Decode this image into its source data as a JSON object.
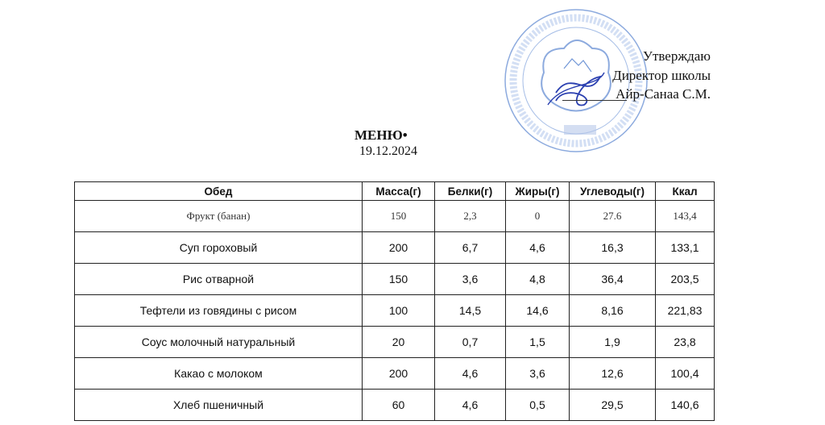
{
  "approval": {
    "line1": "Утверждаю",
    "line2": "Директор школы",
    "line3": "Айр-Санаа С.М.",
    "stamp_color": "#3a6fc4"
  },
  "document": {
    "title": "МЕНЮ•",
    "date": "19.12.2024"
  },
  "table": {
    "headers": [
      "Обед",
      "Масса(г)",
      "Белки(г)",
      "Жиры(г)",
      "Углеводы(г)",
      "Ккал"
    ],
    "rows": [
      [
        "Фрукт (банан)",
        "150",
        "2,3",
        "0",
        "27.6",
        "143,4"
      ],
      [
        "Суп гороховый",
        "200",
        "6,7",
        "4,6",
        "16,3",
        "133,1"
      ],
      [
        "Рис отварной",
        "150",
        "3,6",
        "4,8",
        "36,4",
        "203,5"
      ],
      [
        "Тефтели из говядины с рисом",
        "100",
        "14,5",
        "14,6",
        "8,16",
        "221,83"
      ],
      [
        "Соус молочный натуральный",
        "20",
        "0,7",
        "1,5",
        "1,9",
        "23,8"
      ],
      [
        "Какао с молоком",
        "200",
        "4,6",
        "3,6",
        "12,6",
        "100,4"
      ],
      [
        "Хлеб пшеничный",
        "60",
        "4,6",
        "0,5",
        "29,5",
        "140,6"
      ]
    ]
  }
}
